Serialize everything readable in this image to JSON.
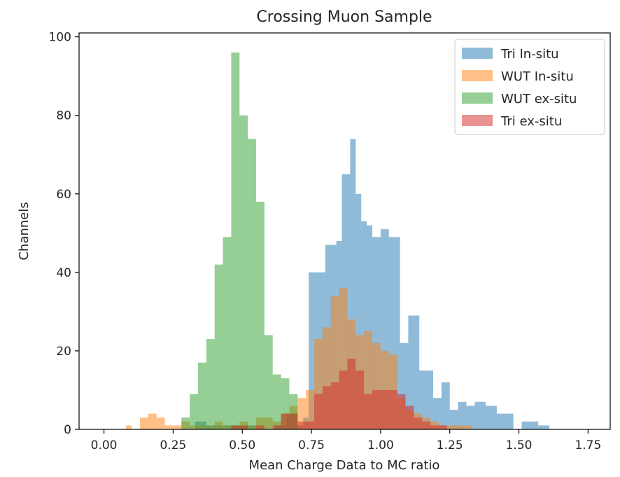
{
  "chart_data": {
    "type": "histogram",
    "title": "Crossing Muon Sample",
    "xlabel": "Mean Charge Data to MC ratio",
    "ylabel": "Channels",
    "xlim": [
      -0.09,
      1.83
    ],
    "ylim": [
      0,
      101
    ],
    "xticks": [
      "0.00",
      "0.25",
      "0.50",
      "0.75",
      "1.00",
      "1.25",
      "1.50",
      "1.75"
    ],
    "xtick_values": [
      0,
      0.25,
      0.5,
      0.75,
      1.0,
      1.25,
      1.5,
      1.75
    ],
    "yticks": [
      "0",
      "20",
      "40",
      "60",
      "80",
      "100"
    ],
    "ytick_values": [
      0,
      20,
      40,
      60,
      80,
      100
    ],
    "legend_position": "top-right",
    "grid": false,
    "series": [
      {
        "name": "Tri In-situ",
        "color": "#1f77b4",
        "opacity": 0.5,
        "bins": [
          [
            0.33,
            0.37,
            2
          ],
          [
            0.37,
            0.43,
            1
          ],
          [
            0.43,
            0.49,
            1
          ],
          [
            0.49,
            0.55,
            1
          ],
          [
            0.62,
            0.66,
            1
          ],
          [
            0.66,
            0.7,
            4
          ],
          [
            0.7,
            0.72,
            1
          ],
          [
            0.72,
            0.74,
            3
          ],
          [
            0.74,
            0.8,
            40
          ],
          [
            0.8,
            0.84,
            47
          ],
          [
            0.84,
            0.86,
            48
          ],
          [
            0.86,
            0.89,
            65
          ],
          [
            0.89,
            0.91,
            74
          ],
          [
            0.91,
            0.93,
            60
          ],
          [
            0.93,
            0.95,
            53
          ],
          [
            0.95,
            0.97,
            52
          ],
          [
            0.97,
            1.0,
            49
          ],
          [
            1.0,
            1.03,
            51
          ],
          [
            1.03,
            1.07,
            49
          ],
          [
            1.07,
            1.1,
            22
          ],
          [
            1.1,
            1.14,
            29
          ],
          [
            1.14,
            1.19,
            15
          ],
          [
            1.19,
            1.22,
            8
          ],
          [
            1.22,
            1.25,
            12
          ],
          [
            1.25,
            1.28,
            5
          ],
          [
            1.28,
            1.31,
            7
          ],
          [
            1.31,
            1.34,
            6
          ],
          [
            1.34,
            1.38,
            7
          ],
          [
            1.38,
            1.42,
            6
          ],
          [
            1.42,
            1.45,
            4
          ],
          [
            1.45,
            1.48,
            4
          ],
          [
            1.51,
            1.54,
            2
          ],
          [
            1.54,
            1.57,
            2
          ],
          [
            1.57,
            1.61,
            1
          ]
        ]
      },
      {
        "name": "WUT In-situ",
        "color": "#ff7f0e",
        "opacity": 0.5,
        "bins": [
          [
            0.08,
            0.1,
            1
          ],
          [
            0.13,
            0.16,
            3
          ],
          [
            0.16,
            0.19,
            4
          ],
          [
            0.19,
            0.22,
            3
          ],
          [
            0.22,
            0.25,
            1
          ],
          [
            0.25,
            0.28,
            1
          ],
          [
            0.28,
            0.31,
            2
          ],
          [
            0.31,
            0.34,
            1
          ],
          [
            0.34,
            0.37,
            1
          ],
          [
            0.37,
            0.4,
            1
          ],
          [
            0.4,
            0.43,
            2
          ],
          [
            0.43,
            0.46,
            1
          ],
          [
            0.46,
            0.49,
            1
          ],
          [
            0.49,
            0.52,
            2
          ],
          [
            0.52,
            0.55,
            1
          ],
          [
            0.55,
            0.58,
            3
          ],
          [
            0.58,
            0.61,
            3
          ],
          [
            0.61,
            0.64,
            2
          ],
          [
            0.64,
            0.67,
            4
          ],
          [
            0.67,
            0.7,
            6
          ],
          [
            0.7,
            0.73,
            8
          ],
          [
            0.73,
            0.76,
            10
          ],
          [
            0.76,
            0.79,
            23
          ],
          [
            0.79,
            0.82,
            26
          ],
          [
            0.82,
            0.85,
            34
          ],
          [
            0.85,
            0.88,
            36
          ],
          [
            0.88,
            0.91,
            28
          ],
          [
            0.91,
            0.94,
            24
          ],
          [
            0.94,
            0.97,
            25
          ],
          [
            0.97,
            1.0,
            22
          ],
          [
            1.0,
            1.03,
            20
          ],
          [
            1.03,
            1.06,
            19
          ],
          [
            1.06,
            1.09,
            8
          ],
          [
            1.09,
            1.12,
            5
          ],
          [
            1.12,
            1.15,
            4
          ],
          [
            1.15,
            1.18,
            3
          ],
          [
            1.18,
            1.21,
            2
          ],
          [
            1.21,
            1.24,
            1
          ],
          [
            1.24,
            1.27,
            1
          ],
          [
            1.27,
            1.3,
            1
          ],
          [
            1.3,
            1.33,
            1
          ]
        ]
      },
      {
        "name": "WUT ex-situ",
        "color": "#2ca02c",
        "opacity": 0.5,
        "bins": [
          [
            0.28,
            0.31,
            3
          ],
          [
            0.31,
            0.34,
            9
          ],
          [
            0.34,
            0.37,
            17
          ],
          [
            0.37,
            0.4,
            23
          ],
          [
            0.4,
            0.43,
            42
          ],
          [
            0.43,
            0.46,
            49
          ],
          [
            0.46,
            0.49,
            96
          ],
          [
            0.49,
            0.52,
            80
          ],
          [
            0.52,
            0.55,
            74
          ],
          [
            0.55,
            0.58,
            58
          ],
          [
            0.58,
            0.61,
            24
          ],
          [
            0.61,
            0.64,
            14
          ],
          [
            0.64,
            0.67,
            13
          ],
          [
            0.67,
            0.7,
            9
          ]
        ]
      },
      {
        "name": "Tri ex-situ",
        "color": "#d62728",
        "opacity": 0.5,
        "bins": [
          [
            0.46,
            0.48,
            1
          ],
          [
            0.48,
            0.5,
            1
          ],
          [
            0.5,
            0.52,
            1
          ],
          [
            0.55,
            0.58,
            1
          ],
          [
            0.61,
            0.64,
            1
          ],
          [
            0.64,
            0.7,
            4
          ],
          [
            0.7,
            0.73,
            2
          ],
          [
            0.73,
            0.76,
            2
          ],
          [
            0.76,
            0.79,
            9
          ],
          [
            0.79,
            0.82,
            11
          ],
          [
            0.82,
            0.85,
            12
          ],
          [
            0.85,
            0.88,
            15
          ],
          [
            0.88,
            0.91,
            18
          ],
          [
            0.91,
            0.94,
            15
          ],
          [
            0.94,
            0.97,
            9
          ],
          [
            0.97,
            1.0,
            10
          ],
          [
            1.0,
            1.03,
            10
          ],
          [
            1.03,
            1.06,
            10
          ],
          [
            1.06,
            1.09,
            9
          ],
          [
            1.09,
            1.12,
            6
          ],
          [
            1.12,
            1.15,
            3
          ],
          [
            1.15,
            1.18,
            2
          ],
          [
            1.18,
            1.21,
            1
          ],
          [
            1.21,
            1.24,
            1
          ]
        ]
      }
    ]
  }
}
